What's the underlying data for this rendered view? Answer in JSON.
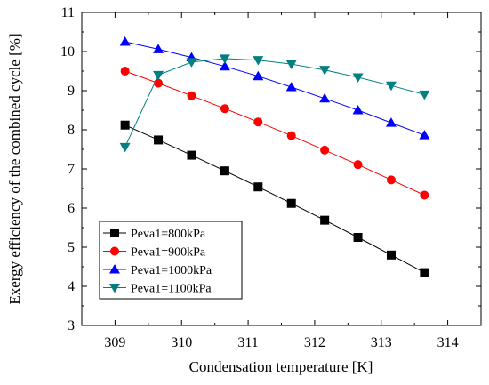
{
  "chart_data": {
    "type": "line",
    "xlabel": "Condensation temperature [K]",
    "ylabel": "Exergy efficiency of the combined cycle [%]",
    "xlim": [
      308.5,
      314.5
    ],
    "ylim": [
      3,
      11
    ],
    "xticks": [
      309,
      310,
      311,
      312,
      313,
      314
    ],
    "yticks": [
      3,
      4,
      5,
      6,
      7,
      8,
      9,
      10,
      11
    ],
    "grid": false,
    "legend_position": "bottom-left",
    "x": [
      309.15,
      309.65,
      310.15,
      310.65,
      311.15,
      311.65,
      312.15,
      312.65,
      313.15,
      313.65
    ],
    "series": [
      {
        "name": "Peva1=800kPa",
        "color": "#000000",
        "marker": "square",
        "values": [
          8.12,
          7.74,
          7.35,
          6.95,
          6.54,
          6.12,
          5.69,
          5.25,
          4.8,
          4.35
        ]
      },
      {
        "name": "Peva1=900kPa",
        "color": "#ff0000",
        "marker": "circle",
        "values": [
          9.5,
          9.19,
          8.87,
          8.54,
          8.2,
          7.85,
          7.48,
          7.11,
          6.72,
          6.33
        ]
      },
      {
        "name": "Peva1=1000kPa",
        "color": "#0000ff",
        "marker": "triangle-up",
        "values": [
          10.25,
          10.06,
          9.85,
          9.62,
          9.37,
          9.09,
          8.8,
          8.5,
          8.18,
          7.86
        ]
      },
      {
        "name": "Peva1=1100kPa",
        "color": "#008080",
        "marker": "triangle-down",
        "values": [
          7.56,
          9.4,
          9.73,
          9.82,
          9.78,
          9.68,
          9.53,
          9.34,
          9.13,
          8.9
        ]
      }
    ]
  }
}
